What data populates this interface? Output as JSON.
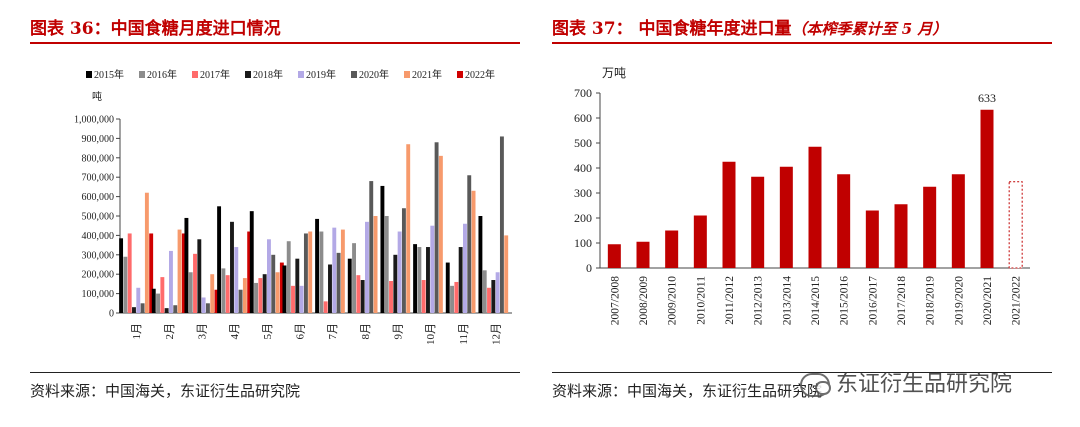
{
  "left": {
    "title": "图表 36：中国食糖月度进口情况",
    "source": "资料来源：中国海关，东证衍生品研究院"
  },
  "right": {
    "title": "图表 37：  中国食糖年度进口量",
    "title_note": "（本榨季累计至 5 月）",
    "source": "资料来源：中国海关，东证衍生品研究院"
  },
  "watermark": "东证衍生品研究院",
  "chart_data": [
    {
      "type": "bar",
      "title": "",
      "ylabel": "吨",
      "ylim": [
        0,
        1000000
      ],
      "yticks": [
        "0",
        "100,000",
        "200,000",
        "300,000",
        "400,000",
        "500,000",
        "600,000",
        "700,000",
        "800,000",
        "900,000",
        "1,000,000"
      ],
      "categories": [
        "1月",
        "2月",
        "3月",
        "4月",
        "5月",
        "6月",
        "7月",
        "8月",
        "9月",
        "10月",
        "11月",
        "12月"
      ],
      "series": [
        {
          "name": "2015年",
          "color": "#000000",
          "values": [
            385000,
            125000,
            490000,
            550000,
            525000,
            245000,
            485000,
            280000,
            655000,
            355000,
            260000,
            500000
          ]
        },
        {
          "name": "2016年",
          "color": "#8c8c8c",
          "values": [
            290000,
            100000,
            210000,
            230000,
            155000,
            370000,
            420000,
            360000,
            500000,
            340000,
            140000,
            220000
          ]
        },
        {
          "name": "2017年",
          "color": "#ff6b6b",
          "values": [
            410000,
            185000,
            305000,
            195000,
            180000,
            140000,
            60000,
            195000,
            165000,
            170000,
            160000,
            130000
          ]
        },
        {
          "name": "2018年",
          "color": "#1a1a1a",
          "values": [
            30000,
            25000,
            380000,
            470000,
            200000,
            280000,
            250000,
            170000,
            300000,
            340000,
            340000,
            170000
          ]
        },
        {
          "name": "2019年",
          "color": "#b3a9e6",
          "values": [
            130000,
            320000,
            80000,
            340000,
            380000,
            140000,
            440000,
            470000,
            420000,
            450000,
            460000,
            210000
          ]
        },
        {
          "name": "2020年",
          "color": "#595959",
          "values": [
            50000,
            40000,
            50000,
            120000,
            300000,
            410000,
            310000,
            680000,
            540000,
            880000,
            710000,
            910000
          ]
        },
        {
          "name": "2021年",
          "color": "#f79a6c",
          "values": [
            620000,
            430000,
            200000,
            180000,
            210000,
            420000,
            430000,
            500000,
            870000,
            810000,
            630000,
            400000
          ]
        },
        {
          "name": "2022年",
          "color": "#d00000",
          "values": [
            410000,
            410000,
            120000,
            420000,
            260000,
            null,
            null,
            null,
            null,
            null,
            null,
            null
          ]
        }
      ]
    },
    {
      "type": "bar",
      "title": "",
      "ylabel": "万吨",
      "ylim": [
        0,
        700
      ],
      "yticks": [
        "0",
        "100",
        "200",
        "300",
        "400",
        "500",
        "600",
        "700"
      ],
      "categories": [
        "2007/2008",
        "2008/2009",
        "2009/2010",
        "2010/2011",
        "2011/2012",
        "2012/2013",
        "2013/2014",
        "2014/2015",
        "2015/2016",
        "2016/2017",
        "2017/2018",
        "2018/2019",
        "2019/2020",
        "2020/2021",
        "2021/2022"
      ],
      "values": [
        95,
        105,
        150,
        210,
        425,
        365,
        405,
        485,
        375,
        230,
        255,
        325,
        375,
        633,
        345
      ],
      "data_labels": {
        "2020/2021": "633"
      },
      "color": "#c00000",
      "last_bar_style": "dashed-outline"
    }
  ]
}
